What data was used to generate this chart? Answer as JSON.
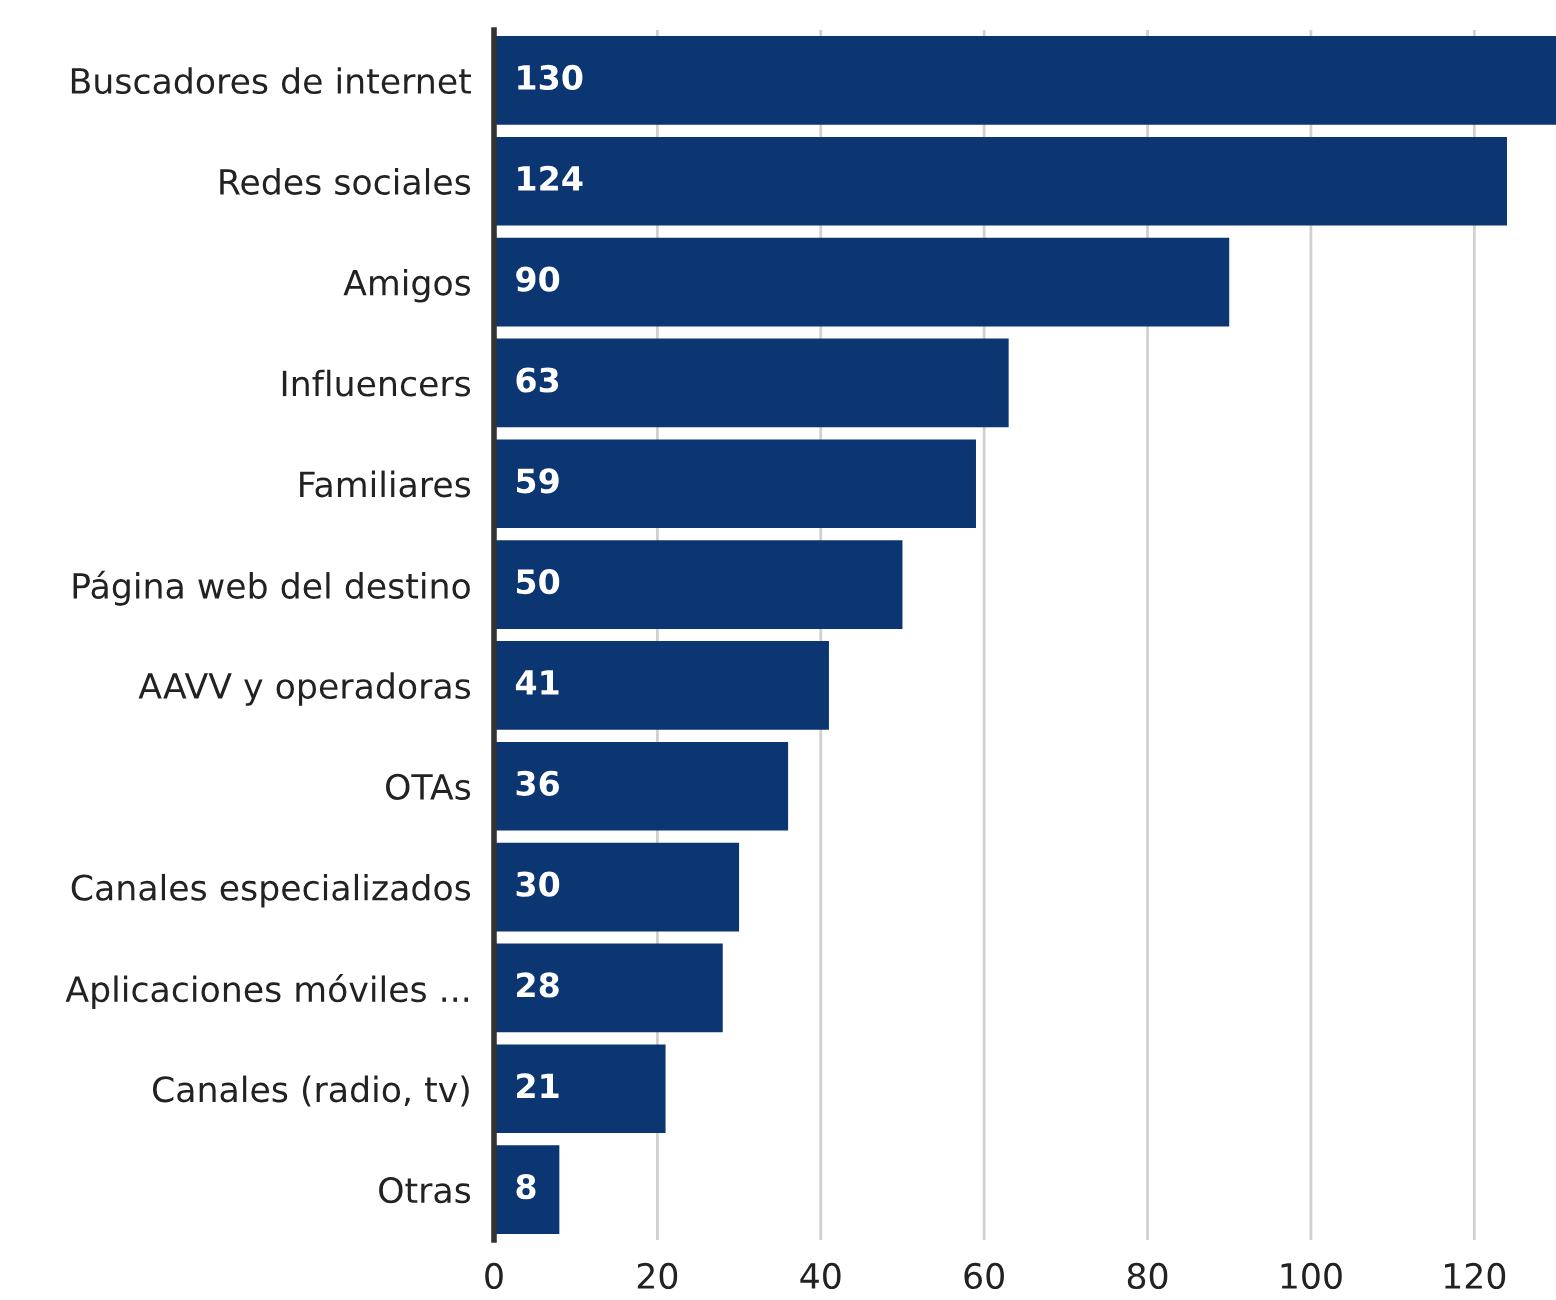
{
  "chart_data": {
    "type": "bar",
    "orientation": "horizontal",
    "categories": [
      "Buscadores de internet",
      "Redes sociales",
      "Amigos",
      "Influencers",
      "Familiares",
      "Página web del destino",
      "AAVV y operadoras",
      "OTAs",
      "Canales especializados",
      "Aplicaciones móviles ...",
      "Canales (radio, tv)",
      "Otras"
    ],
    "values": [
      130,
      124,
      90,
      63,
      59,
      50,
      41,
      36,
      30,
      28,
      21,
      8
    ],
    "color": "#0b3672",
    "xlim": [
      0,
      130
    ],
    "xticks": [
      0,
      20,
      40,
      60,
      80,
      100,
      120
    ],
    "grid": "x",
    "data_labels": true
  }
}
